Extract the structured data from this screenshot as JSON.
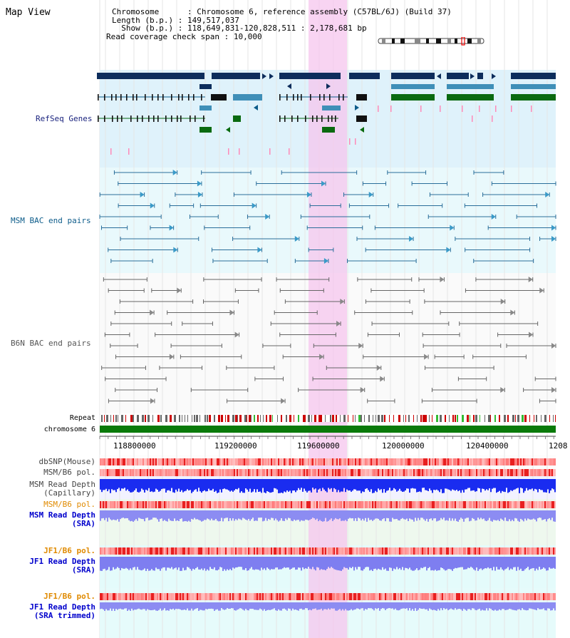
{
  "page": {
    "title": "Map View"
  },
  "info": {
    "chromosome_key": "Chromosome",
    "chromosome_value": "Chromosome 6, reference assembly (C57BL/6J) (Build 37)",
    "length_key": "Length (b.p.)",
    "length_value": "149,517,037",
    "show_key": "Show (b.p.)",
    "show_value": "118,649,831-120,828,511 : 2,178,681 bp",
    "coverage_key": "Read coverage check span",
    "coverage_value": "10,000"
  },
  "tracks": {
    "refseq": "RefSeq Genes",
    "msm_bac": "MSM BAC end pairs",
    "b6n_bac": "B6N BAC end pairs",
    "repeat": "Repeat",
    "chromosome": "chromosome 6",
    "dbsnp": "dbSNP(Mouse)",
    "msm_b6_pol": "MSM/B6 pol.",
    "msm_read_depth_cap_1": "MSM Read Depth",
    "msm_read_depth_cap_2": "(Capillary)",
    "msm_b6_pol_2": "MSM/B6 pol.",
    "msm_read_depth_sra_1": "MSM Read Depth",
    "msm_read_depth_sra_2": "(SRA)",
    "jf1_b6_pol": "JF1/B6 pol.",
    "jf1_read_depth_sra_1": "JF1 Read Depth",
    "jf1_read_depth_sra_2": "(SRA)",
    "jf1_b6_pol_2": "JF1/B6 pol.",
    "jf1_read_depth_trim_1": "JF1 Read Depth",
    "jf1_read_depth_trim_2": "(SRA trimmed)"
  },
  "axis": {
    "ticks": [
      "118800000",
      "119200000",
      "119600000",
      "120000000",
      "120400000",
      "1208"
    ]
  },
  "colors": {
    "refseq_label": "#1a237e",
    "msm_label": "#0d5c8a",
    "b6n_label": "#555555",
    "orange_label": "#e08a00",
    "blue_label": "#0000cc",
    "highlight": "#f9d3f0",
    "gene_dark": "#0d2d5c",
    "gene_light": "#3f8fb8",
    "gene_green": "#0a6a10",
    "chromosome_bar": "#0a7a0a"
  }
}
